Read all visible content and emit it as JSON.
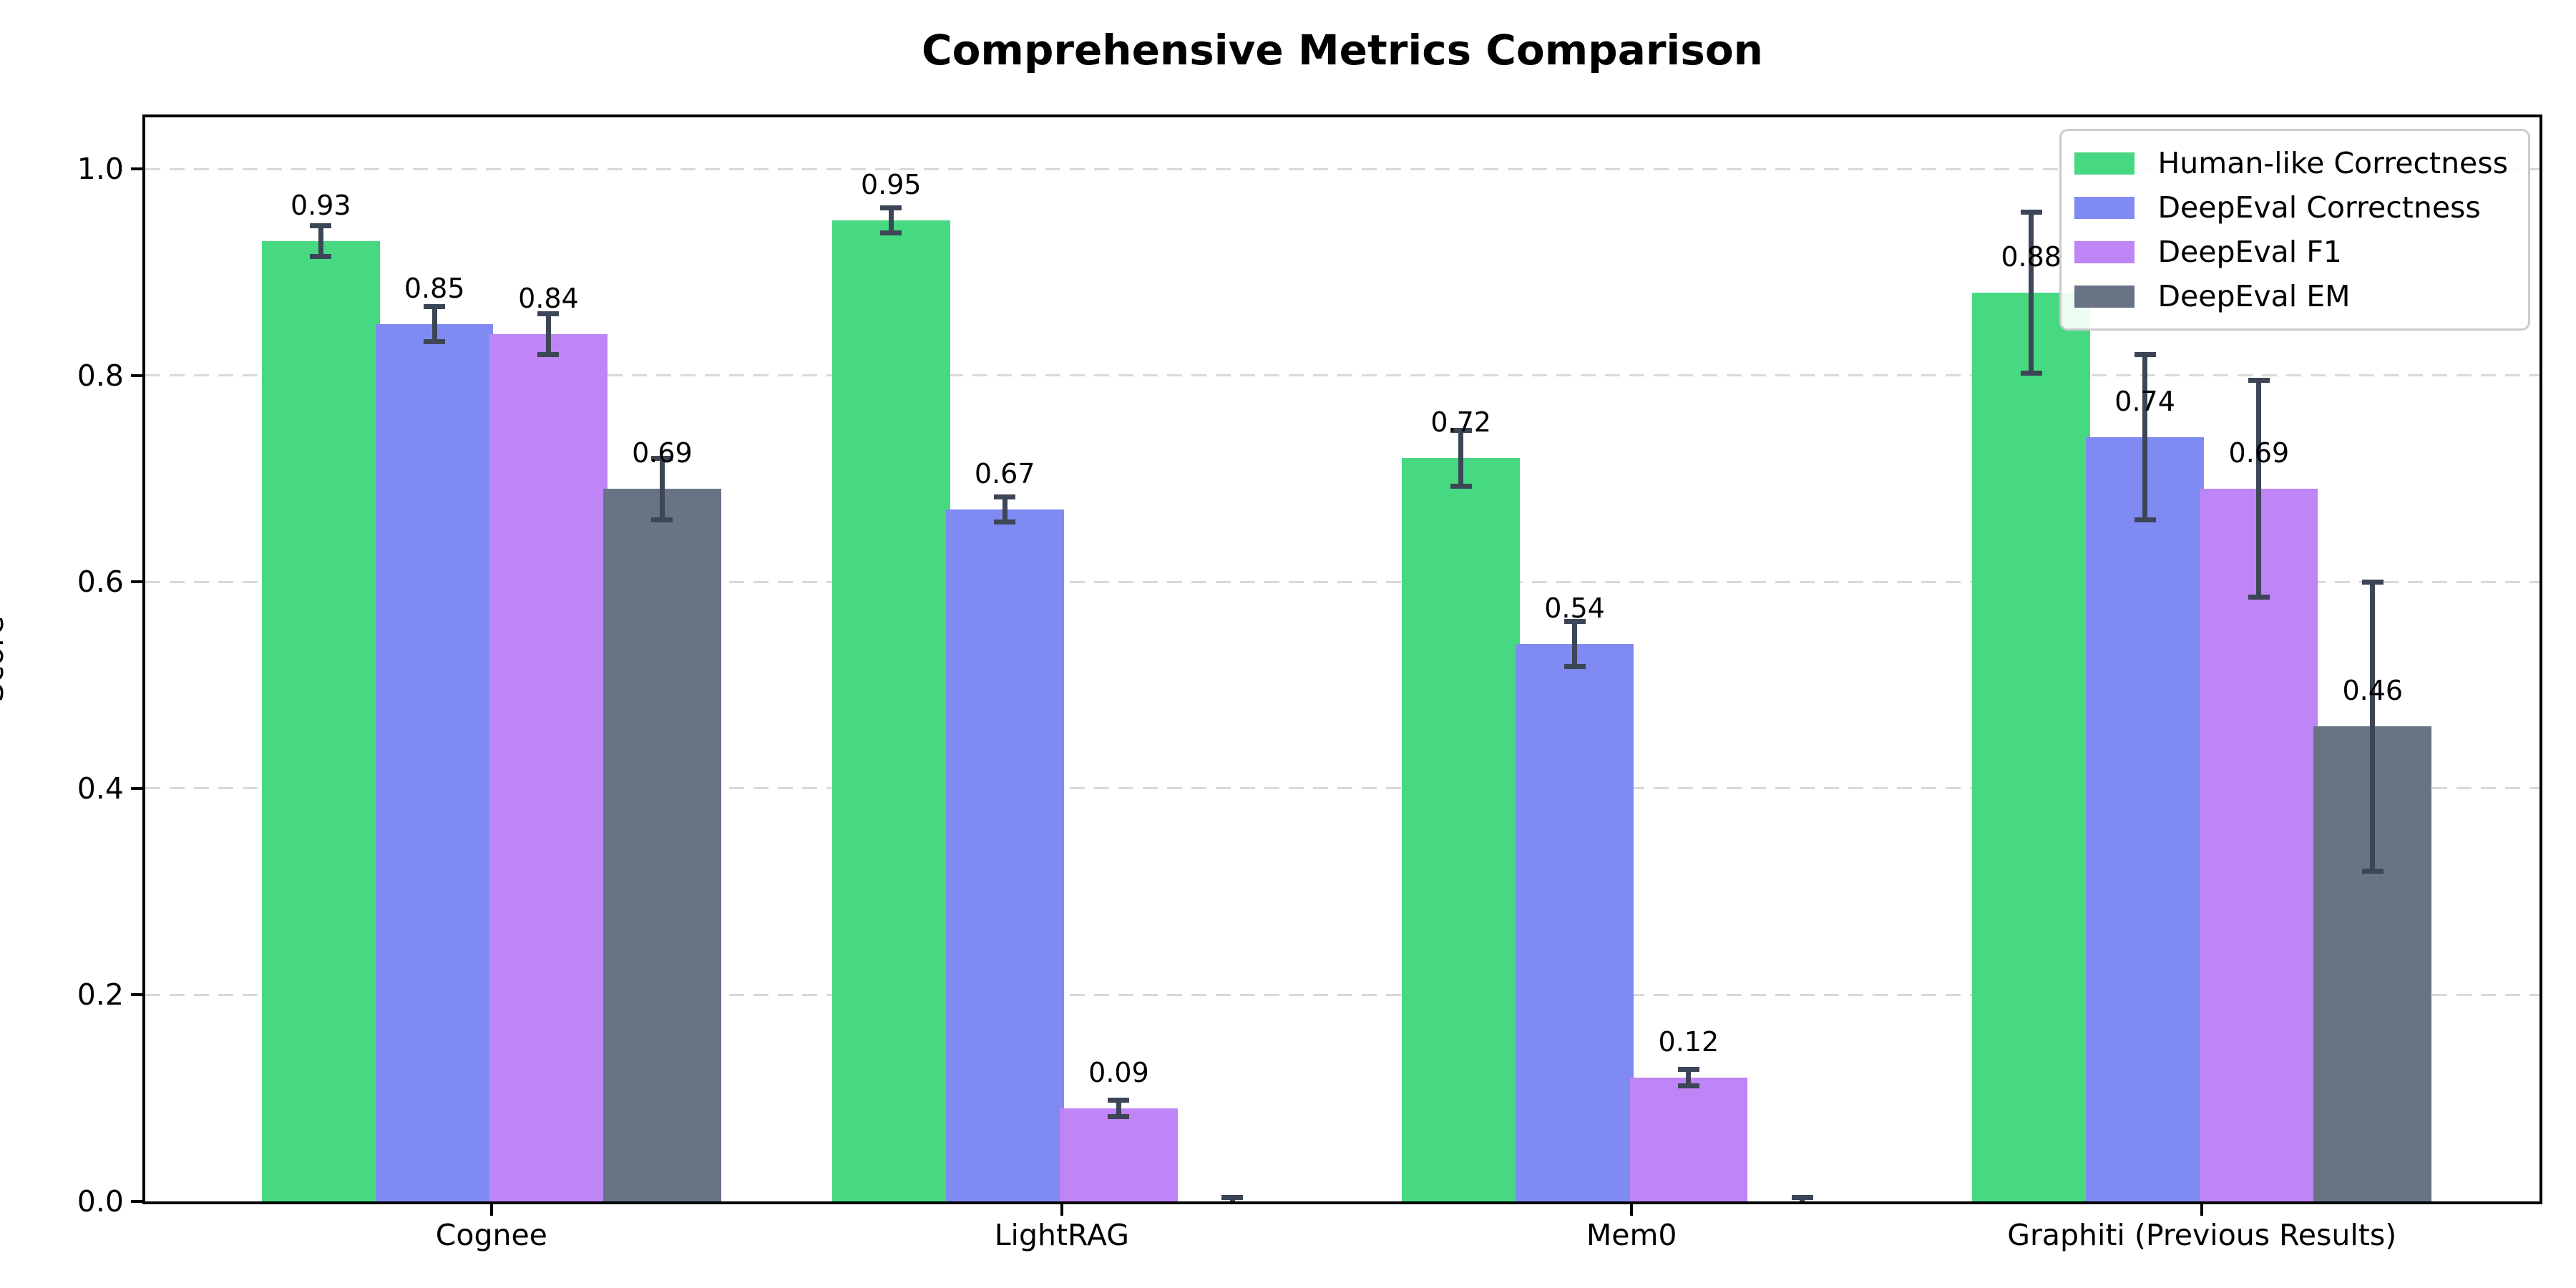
{
  "chart_data": {
    "type": "bar",
    "title": "Comprehensive Metrics Comparison",
    "xlabel": "",
    "ylabel": "Score",
    "categories": [
      "Cognee",
      "LightRAG",
      "Mem0",
      "Graphiti (Previous Results)"
    ],
    "series": [
      {
        "name": "Human-like Correctness",
        "color": "#46d982",
        "values": [
          0.93,
          0.95,
          0.72,
          0.88
        ],
        "errors": [
          0.015,
          0.012,
          0.027,
          0.078
        ],
        "labels": [
          "0.93",
          "0.95",
          "0.72",
          "0.88"
        ]
      },
      {
        "name": "DeepEval Correctness",
        "color": "#7f8bf2",
        "values": [
          0.85,
          0.67,
          0.54,
          0.74
        ],
        "errors": [
          0.017,
          0.012,
          0.022,
          0.08
        ],
        "labels": [
          "0.85",
          "0.67",
          "0.54",
          "0.74"
        ]
      },
      {
        "name": "DeepEval F1",
        "color": "#bf84f5",
        "values": [
          0.84,
          0.09,
          0.12,
          0.69
        ],
        "errors": [
          0.02,
          0.008,
          0.008,
          0.105
        ],
        "labels": [
          "0.84",
          "0.09",
          "0.12",
          "0.69"
        ]
      },
      {
        "name": "DeepEval EM",
        "color": "#687385",
        "values": [
          0.69,
          0.0,
          0.0,
          0.46
        ],
        "errors": [
          0.03,
          0.004,
          0.004,
          0.14
        ],
        "labels": [
          "0.69",
          null,
          null,
          "0.46"
        ]
      }
    ],
    "ylim": [
      0,
      1.05
    ],
    "yticks": [
      "0.0",
      "0.2",
      "0.4",
      "0.6",
      "0.8",
      "1.0"
    ],
    "grid": "horizontal-dashed",
    "legend_position": "upper right",
    "error_bar_color": "#3d4656",
    "grid_color": "#d9d9d9",
    "axis_color": "#000000"
  }
}
